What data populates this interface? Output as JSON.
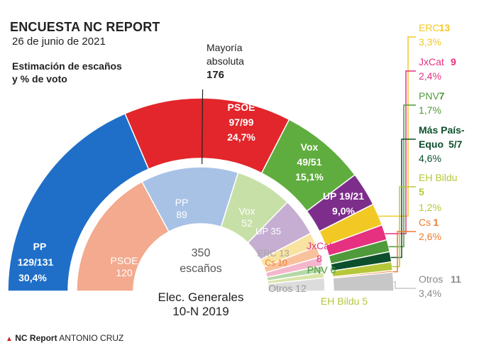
{
  "header": {
    "title": "ENCUESTA NC REPORT",
    "date": "26 de junio de 2021",
    "subtitle_line1": "Estimación de escaños",
    "subtitle_line2": "y % de voto"
  },
  "majority": {
    "line1": "Mayoría",
    "line2": "absoluta",
    "value": "176"
  },
  "footer": {
    "brand": "NC Report",
    "author": "ANTONIO CRUZ"
  },
  "chart_data": {
    "type": "hemicycle",
    "outer": {
      "title": "",
      "series": [
        {
          "party": "PP",
          "seats": "129/131",
          "seats_value": 130,
          "pct": "30,4%",
          "color": "#1f6fc9"
        },
        {
          "party": "PSOE",
          "seats": "97/99",
          "seats_value": 98,
          "pct": "24,7%",
          "color": "#e2262b"
        },
        {
          "party": "Vox",
          "seats": "49/51",
          "seats_value": 50,
          "pct": "15,1%",
          "color": "#5fad3e"
        },
        {
          "party": "UP",
          "seats": "19/21",
          "seats_value": 20,
          "pct": "9,0%",
          "color": "#7d2e8b"
        },
        {
          "party": "ERC",
          "seats": "13",
          "seats_value": 13,
          "pct": "3,3%",
          "color": "#f2c924"
        },
        {
          "party": "JxCat",
          "seats": "9",
          "seats_value": 9,
          "pct": "2,4%",
          "color": "#e5317f"
        },
        {
          "party": "PNV",
          "seats": "7",
          "seats_value": 7,
          "pct": "1,7%",
          "color": "#4f9a3a"
        },
        {
          "party": "Más País-Equo",
          "seats": "5/7",
          "seats_value": 6,
          "pct": "4,6%",
          "color": "#0d4f2d"
        },
        {
          "party": "EH Bildu",
          "seats": "5",
          "seats_value": 5,
          "pct": "1,2%",
          "color": "#b6c73a"
        },
        {
          "party": "Cs",
          "seats": "1",
          "seats_value": 1,
          "pct": "2,6%",
          "color": "#ef7a2a"
        },
        {
          "party": "Otros",
          "seats": "11",
          "seats_value": 11,
          "pct": "3,4%",
          "color": "#c7c7c7"
        }
      ]
    },
    "inner": {
      "title": "Elec. Generales 10-N 2019",
      "title_line1": "Elec. Generales",
      "title_line2": "10-N 2019",
      "total_line1": "350",
      "total_line2": "escaños",
      "series": [
        {
          "party": "PSOE",
          "seats": 120,
          "color": "#f3aa8e"
        },
        {
          "party": "PP",
          "seats": 89,
          "color": "#a8c2e6"
        },
        {
          "party": "Vox",
          "seats": 52,
          "color": "#c7e0a8"
        },
        {
          "party": "UP",
          "seats": 35,
          "color": "#c6aed3"
        },
        {
          "party": "ERC",
          "seats": 13,
          "color": "#f8e3a0"
        },
        {
          "party": "Cs",
          "seats": 10,
          "color": "#f8c29d"
        },
        {
          "party": "JxCat",
          "seats": 8,
          "color": "#f4b6cc"
        },
        {
          "party": "PNV",
          "seats": 6,
          "color": "#b5d8a8"
        },
        {
          "party": "EH Bildu",
          "seats": 5,
          "color": "#d9e4a8"
        },
        {
          "party": "Otros",
          "seats": 12,
          "color": "#dcdcdc"
        }
      ]
    },
    "majority_line": 176
  }
}
